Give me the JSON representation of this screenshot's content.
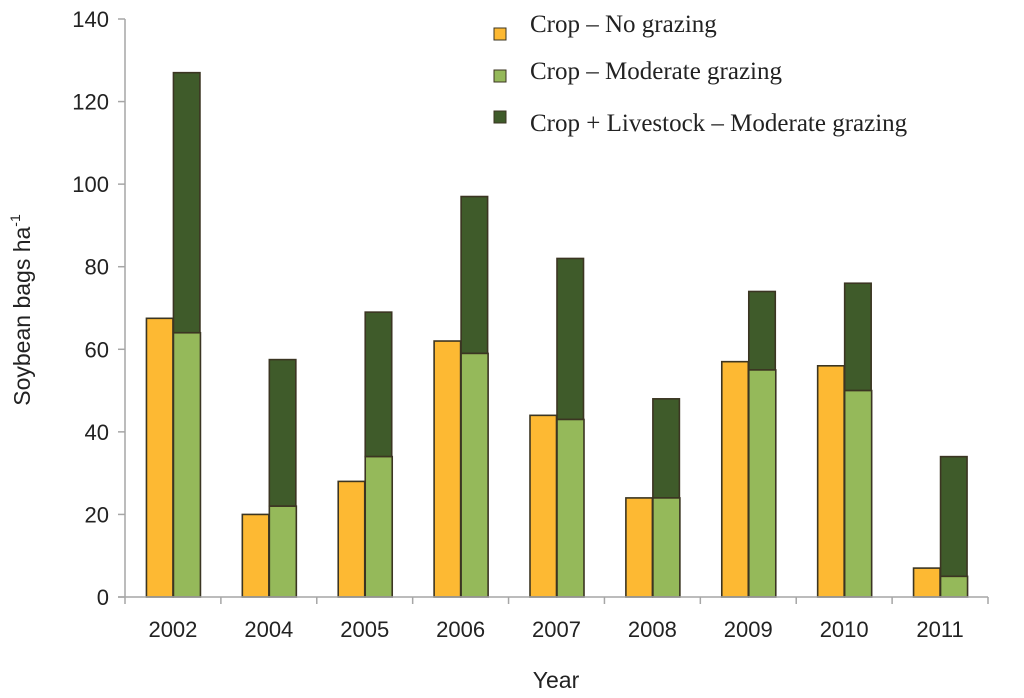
{
  "chart_data": {
    "type": "bar",
    "title": "",
    "xlabel": "Year",
    "ylabel": "Soybean bags ha",
    "ylabel_superscript": "-1",
    "ylim": [
      0,
      140
    ],
    "yticks": [
      0,
      20,
      40,
      60,
      80,
      100,
      120,
      140
    ],
    "grid": false,
    "legend_position": "top-right",
    "stacking_note": "Crop + Livestock segment is stacked on top of Crop – Moderate grazing bar",
    "categories": [
      "2002",
      "2004",
      "2005",
      "2006",
      "2007",
      "2008",
      "2009",
      "2010",
      "2011"
    ],
    "series": [
      {
        "name": "Crop – No grazing",
        "color": "#FDB933",
        "values": [
          67.5,
          20,
          28,
          62,
          44,
          24,
          57,
          56,
          7
        ]
      },
      {
        "name": "Crop – Moderate grazing",
        "color": "#95B95A",
        "values": [
          64,
          22,
          34,
          59,
          43,
          24,
          55,
          50,
          5
        ]
      },
      {
        "name": "Crop + Livestock  – Moderate grazing",
        "color": "#3F5B2A",
        "values": [
          127,
          57.5,
          69,
          97,
          82,
          48,
          74,
          76,
          34
        ]
      }
    ]
  }
}
